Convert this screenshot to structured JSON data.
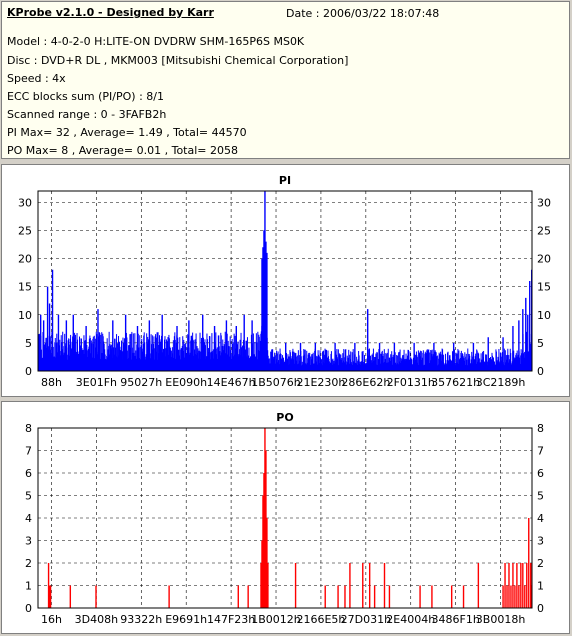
{
  "header": {
    "app_title": "KProbe v2.1.0 - Designed by Karr",
    "date": "Date : 2006/03/22 18:07:48",
    "lines": [
      "Model : 4-0-2-0 H:LITE-ON DVDRW SHM-165P6S MS0K",
      "Disc : DVD+R DL , MKM003 [Mitsubishi Chemical Corporation]",
      "Speed : 4x",
      "ECC blocks sum (PI/PO) : 8/1",
      "Scanned range : 0 - 3FAFB2h",
      "PI Max= 32 , Average= 1.49 , Total= 44570",
      "PO Max= 8 , Average= 0.01 , Total= 2058"
    ]
  },
  "chart_data": [
    {
      "type": "bar",
      "title": "PI",
      "color": "#0000ff",
      "ylim": [
        0,
        32
      ],
      "yticks": [
        0,
        5,
        10,
        15,
        20,
        25,
        30
      ],
      "xticks": [
        "88h",
        "3E01Fh",
        "95027h",
        "EE090h",
        "14E467h",
        "1B5076h",
        "21E230h",
        "286E62h",
        "2F0131h",
        "357621h",
        "3C2189h"
      ],
      "xlim": [
        0,
        500
      ],
      "grid": true,
      "summary": {
        "max": 32,
        "average": 1.49,
        "total": 44570
      },
      "background_level": [
        {
          "from": 0,
          "to": 225,
          "low": 2,
          "high": 7
        },
        {
          "from": 225,
          "to": 232,
          "low": 3,
          "high": 9
        },
        {
          "from": 232,
          "to": 490,
          "low": 1,
          "high": 4
        },
        {
          "from": 490,
          "to": 500,
          "low": 2,
          "high": 7
        }
      ],
      "spikes": [
        {
          "x": 2,
          "y": 10
        },
        {
          "x": 5,
          "y": 9
        },
        {
          "x": 9,
          "y": 15
        },
        {
          "x": 11,
          "y": 12
        },
        {
          "x": 14,
          "y": 18
        },
        {
          "x": 20,
          "y": 10
        },
        {
          "x": 28,
          "y": 9
        },
        {
          "x": 35,
          "y": 10
        },
        {
          "x": 48,
          "y": 8
        },
        {
          "x": 60,
          "y": 11
        },
        {
          "x": 75,
          "y": 9
        },
        {
          "x": 88,
          "y": 10
        },
        {
          "x": 100,
          "y": 8
        },
        {
          "x": 112,
          "y": 9
        },
        {
          "x": 125,
          "y": 10
        },
        {
          "x": 140,
          "y": 8
        },
        {
          "x": 152,
          "y": 9
        },
        {
          "x": 166,
          "y": 10
        },
        {
          "x": 178,
          "y": 8
        },
        {
          "x": 190,
          "y": 9
        },
        {
          "x": 200,
          "y": 8
        },
        {
          "x": 208,
          "y": 10
        },
        {
          "x": 216,
          "y": 9
        },
        {
          "x": 226,
          "y": 20
        },
        {
          "x": 227,
          "y": 22
        },
        {
          "x": 228,
          "y": 25
        },
        {
          "x": 229,
          "y": 32
        },
        {
          "x": 230,
          "y": 23
        },
        {
          "x": 231,
          "y": 21
        },
        {
          "x": 250,
          "y": 5
        },
        {
          "x": 265,
          "y": 5
        },
        {
          "x": 280,
          "y": 5
        },
        {
          "x": 300,
          "y": 5
        },
        {
          "x": 320,
          "y": 5
        },
        {
          "x": 333,
          "y": 11
        },
        {
          "x": 345,
          "y": 5
        },
        {
          "x": 360,
          "y": 5
        },
        {
          "x": 380,
          "y": 5
        },
        {
          "x": 400,
          "y": 5
        },
        {
          "x": 420,
          "y": 5
        },
        {
          "x": 440,
          "y": 5
        },
        {
          "x": 455,
          "y": 6
        },
        {
          "x": 470,
          "y": 6
        },
        {
          "x": 480,
          "y": 8
        },
        {
          "x": 486,
          "y": 9
        },
        {
          "x": 490,
          "y": 11
        },
        {
          "x": 493,
          "y": 13
        },
        {
          "x": 495,
          "y": 10
        },
        {
          "x": 497,
          "y": 16
        },
        {
          "x": 499,
          "y": 18
        }
      ]
    },
    {
      "type": "bar",
      "title": "PO",
      "color": "#ff0000",
      "ylim": [
        0,
        8
      ],
      "yticks": [
        0,
        1,
        2,
        3,
        4,
        5,
        6,
        7,
        8
      ],
      "xticks": [
        "16h",
        "3D408h",
        "93322h",
        "E9691h",
        "147F23h",
        "1B0012h",
        "2166E5h",
        "27D031h",
        "2E4004h",
        "3486F1h",
        "3B0018h"
      ],
      "xlim": [
        0,
        500
      ],
      "grid": true,
      "summary": {
        "max": 8,
        "average": 0.01,
        "total": 2058
      },
      "spikes": [
        {
          "x": 10,
          "y": 2
        },
        {
          "x": 11,
          "y": 1
        },
        {
          "x": 12,
          "y": 1
        },
        {
          "x": 32,
          "y": 1
        },
        {
          "x": 58,
          "y": 1
        },
        {
          "x": 132,
          "y": 1
        },
        {
          "x": 202,
          "y": 1
        },
        {
          "x": 212,
          "y": 1
        },
        {
          "x": 225,
          "y": 2
        },
        {
          "x": 226,
          "y": 3
        },
        {
          "x": 227,
          "y": 5
        },
        {
          "x": 228,
          "y": 6
        },
        {
          "x": 229,
          "y": 8
        },
        {
          "x": 230,
          "y": 7
        },
        {
          "x": 231,
          "y": 4
        },
        {
          "x": 232,
          "y": 2
        },
        {
          "x": 260,
          "y": 2
        },
        {
          "x": 290,
          "y": 1
        },
        {
          "x": 303,
          "y": 1
        },
        {
          "x": 310,
          "y": 1
        },
        {
          "x": 315,
          "y": 2
        },
        {
          "x": 328,
          "y": 2
        },
        {
          "x": 335,
          "y": 2
        },
        {
          "x": 340,
          "y": 1
        },
        {
          "x": 350,
          "y": 2
        },
        {
          "x": 355,
          "y": 1
        },
        {
          "x": 386,
          "y": 1
        },
        {
          "x": 398,
          "y": 1
        },
        {
          "x": 418,
          "y": 1
        },
        {
          "x": 430,
          "y": 1
        },
        {
          "x": 445,
          "y": 2
        },
        {
          "x": 470,
          "y": 1
        },
        {
          "x": 472,
          "y": 2
        },
        {
          "x": 474,
          "y": 1
        },
        {
          "x": 476,
          "y": 2
        },
        {
          "x": 478,
          "y": 1
        },
        {
          "x": 480,
          "y": 2
        },
        {
          "x": 482,
          "y": 1
        },
        {
          "x": 484,
          "y": 2
        },
        {
          "x": 486,
          "y": 1
        },
        {
          "x": 488,
          "y": 2
        },
        {
          "x": 490,
          "y": 2
        },
        {
          "x": 492,
          "y": 1
        },
        {
          "x": 494,
          "y": 2
        },
        {
          "x": 496,
          "y": 4
        },
        {
          "x": 498,
          "y": 2
        },
        {
          "x": 499,
          "y": 1
        }
      ]
    }
  ]
}
